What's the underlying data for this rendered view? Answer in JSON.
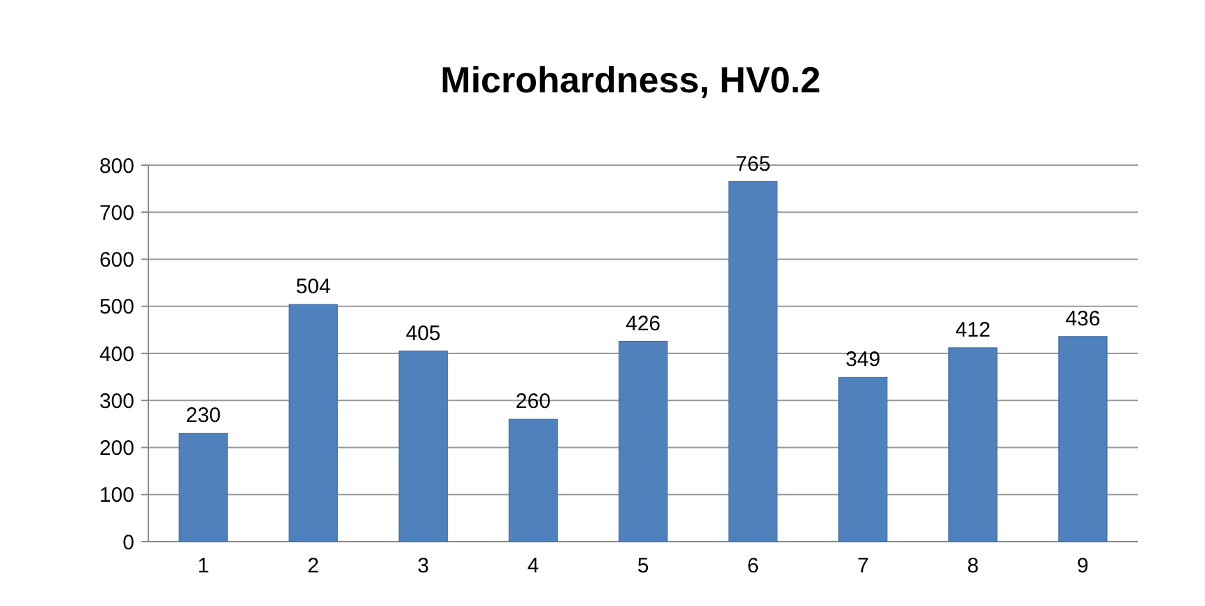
{
  "chart_data": {
    "type": "bar",
    "title": "Microhardness, HV0.2",
    "categories": [
      "1",
      "2",
      "3",
      "4",
      "5",
      "6",
      "7",
      "8",
      "9"
    ],
    "values": [
      230,
      504,
      405,
      260,
      426,
      765,
      349,
      412,
      436
    ],
    "color": "#4f81bd",
    "ylim": [
      0,
      800
    ],
    "yticks": [
      0,
      100,
      200,
      300,
      400,
      500,
      600,
      700,
      800
    ],
    "grid": "y",
    "data_labels": true
  }
}
